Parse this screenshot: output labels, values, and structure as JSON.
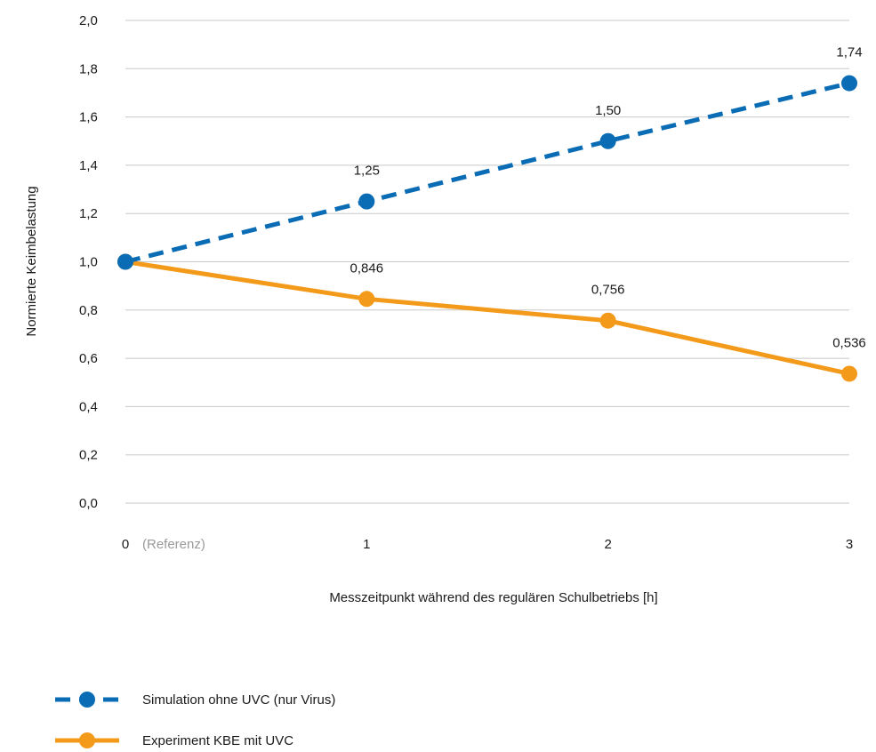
{
  "chart_data": {
    "type": "line",
    "x": [
      0,
      1,
      2,
      3
    ],
    "x_tick_labels": [
      "0",
      "1",
      "2",
      "3"
    ],
    "x_reference_note": "(Referenz)",
    "xlabel": "Messzeitpunkt während des regulären Schulbetriebs [h]",
    "ylabel": "Normierte Keimbelastung",
    "ylim": [
      0,
      2.0
    ],
    "y_ticks": [
      "0,0",
      "0,2",
      "0,4",
      "0,6",
      "0,8",
      "1,0",
      "1,2",
      "1,4",
      "1,6",
      "1,8",
      "2,0"
    ],
    "grid": "horizontal",
    "legend_position": "bottom-left",
    "series": [
      {
        "name": "Simulation ohne UVC (nur Virus)",
        "values": [
          1.0,
          1.25,
          1.5,
          1.74
        ],
        "data_labels": [
          "",
          "1,25",
          "1,50",
          "1,74"
        ],
        "color": "#0a6cb4",
        "line_style": "dashed"
      },
      {
        "name": "Experiment KBE mit UVC",
        "values": [
          1.0,
          0.846,
          0.756,
          0.536
        ],
        "data_labels": [
          "",
          "0,846",
          "0,756",
          "0,536"
        ],
        "color": "#f39a1a",
        "line_style": "solid"
      }
    ]
  }
}
